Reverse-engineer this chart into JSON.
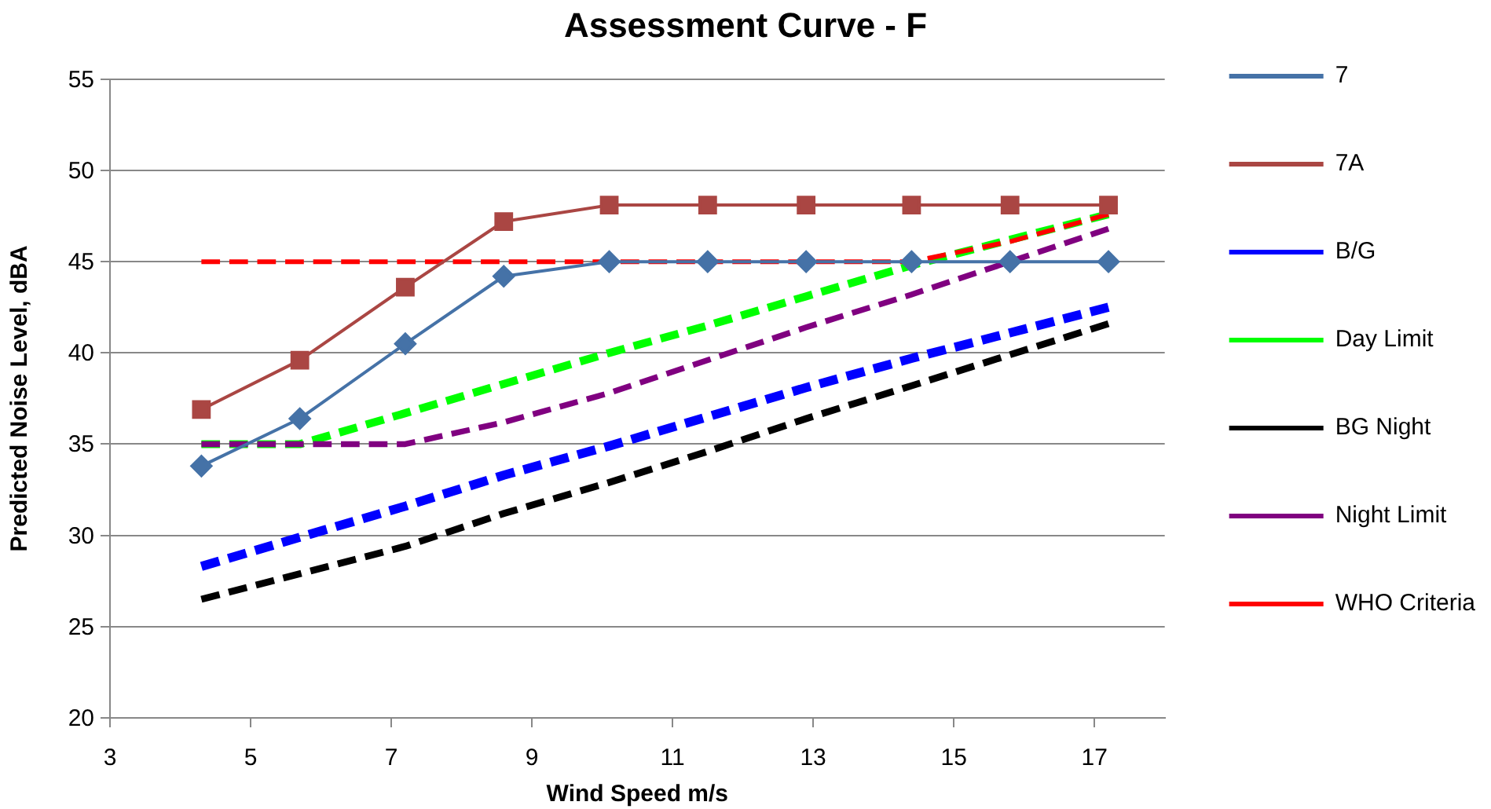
{
  "chart_data": {
    "type": "line",
    "title": "Assessment Curve - F",
    "xlabel": "Wind Speed m/s",
    "ylabel": "Predicted Noise Level, dBA",
    "x": [
      4.3,
      5.7,
      7.2,
      8.6,
      10.1,
      11.5,
      12.9,
      14.4,
      15.8,
      17.2
    ],
    "xlim": [
      3,
      18
    ],
    "xticks": [
      3,
      5,
      7,
      9,
      11,
      13,
      15,
      17
    ],
    "ylim": [
      20,
      55
    ],
    "yticks": [
      20,
      25,
      30,
      35,
      40,
      45,
      50,
      55
    ],
    "grid": "y",
    "legend": "right",
    "series": [
      {
        "name": "7",
        "color": "#4572a7",
        "marker": "diamond",
        "line_style": "solid",
        "values": [
          33.8,
          36.4,
          40.5,
          44.2,
          45,
          45,
          45,
          45,
          45,
          45
        ]
      },
      {
        "name": "7A",
        "color": "#aa4643",
        "marker": "square",
        "line_style": "solid",
        "values": [
          36.9,
          39.6,
          43.6,
          47.2,
          48.1,
          48.1,
          48.1,
          48.1,
          48.1,
          48.1
        ]
      },
      {
        "name": "B/G",
        "color": "#0000ff",
        "marker": "none",
        "line_style": "dashed",
        "values": [
          28.3,
          29.9,
          31.6,
          33.3,
          34.9,
          36.5,
          38.1,
          39.7,
          41.1,
          42.5
        ]
      },
      {
        "name": "Day Limit",
        "color": "#00ff00",
        "marker": "none",
        "line_style": "dashed",
        "values": [
          35,
          35,
          36.7,
          38.3,
          40,
          41.5,
          43.1,
          44.8,
          46.2,
          47.6
        ]
      },
      {
        "name": "BG Night",
        "color": "#000000",
        "marker": "none",
        "line_style": "dashed",
        "values": [
          26.5,
          27.9,
          29.4,
          31.2,
          32.9,
          34.6,
          36.4,
          38.2,
          39.9,
          41.6
        ]
      },
      {
        "name": "Night Limit",
        "color": "#800080",
        "marker": "none",
        "line_style": "dashed",
        "values": [
          35,
          35,
          35,
          36.2,
          37.8,
          39.6,
          41.4,
          43.2,
          45,
          46.8
        ]
      },
      {
        "name": "WHO Criteria",
        "color": "#ff0000",
        "marker": "none",
        "line_style": "dashed",
        "values": [
          45,
          45,
          45,
          45,
          45,
          45,
          45,
          45,
          46.1,
          47.6
        ]
      }
    ]
  }
}
